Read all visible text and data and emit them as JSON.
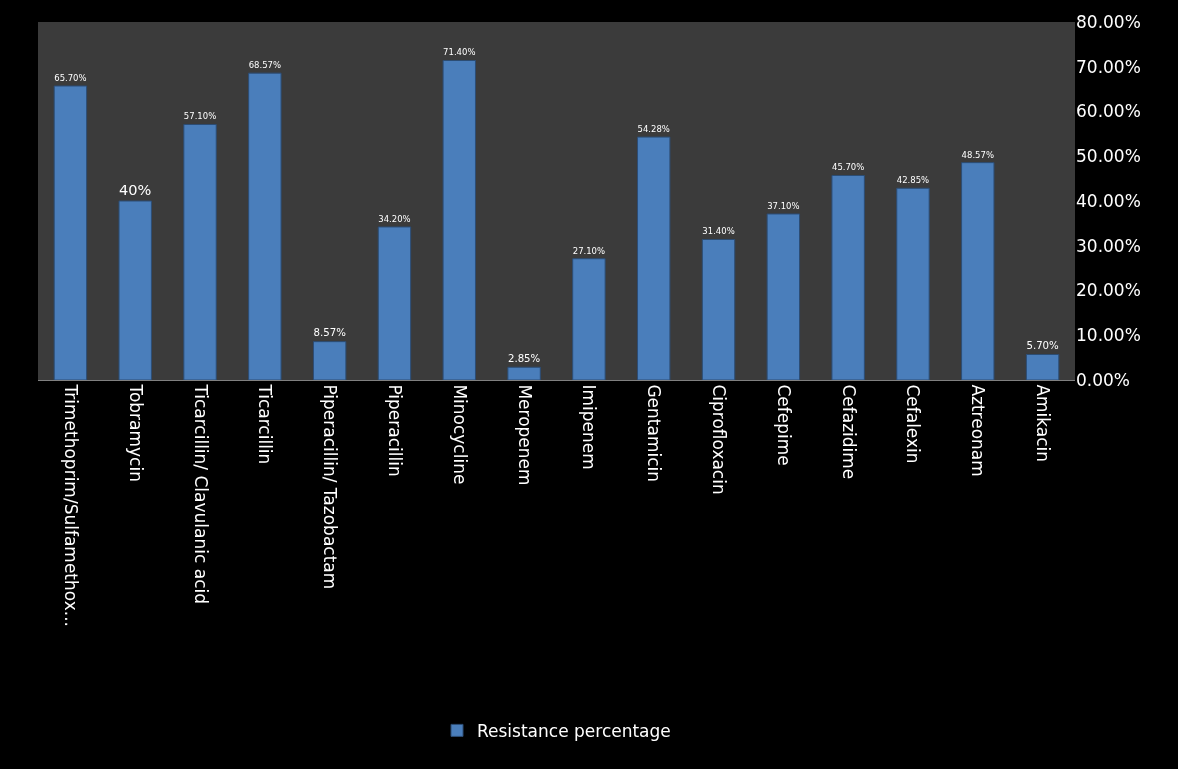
{
  "chart_data": {
    "type": "bar",
    "categories": [
      "Trimethoprim/Sulfamethox...",
      "Tobramycin",
      "Ticarcillin/ Clavulanic acid",
      "Ticarcillin",
      "Piperacillin/ Tazobactam",
      "Piperacillin",
      "Minocycline",
      "Meropenem",
      "Imipenem",
      "Gentamicin",
      "Ciprofloxacin",
      "Cefepime",
      "Cefazidime",
      "Cefalexin",
      "Aztreonam",
      "Amikacin"
    ],
    "series": [
      {
        "name": "Resistance percentage",
        "color": "#4a7ebb",
        "values": [
          65.7,
          40,
          57.1,
          68.57,
          8.57,
          34.2,
          71.4,
          2.85,
          27.1,
          54.28,
          31.4,
          37.1,
          45.7,
          42.85,
          48.57,
          5.7
        ],
        "value_labels": [
          "65.70%",
          "40%",
          "57.10%",
          "68.57%",
          "8.57%",
          "34.20%",
          "71.40%",
          "2.85%",
          "27.10%",
          "54.28%",
          "31.40%",
          "37.10%",
          "45.70%",
          "42.85%",
          "48.57%",
          "5.70%"
        ]
      }
    ],
    "ylim": [
      0,
      80
    ],
    "yticks": [
      {
        "value": 0,
        "label": "0.00%"
      },
      {
        "value": 10,
        "label": "10.00%"
      },
      {
        "value": 20,
        "label": "20.00%"
      },
      {
        "value": 30,
        "label": "30.00%"
      },
      {
        "value": 40,
        "label": "40.00%"
      },
      {
        "value": 50,
        "label": "50.00%"
      },
      {
        "value": 60,
        "label": "60.00%"
      },
      {
        "value": 70,
        "label": "70.00%"
      },
      {
        "value": 80,
        "label": "80.00%"
      }
    ],
    "grid": false,
    "legend": "bottom"
  }
}
